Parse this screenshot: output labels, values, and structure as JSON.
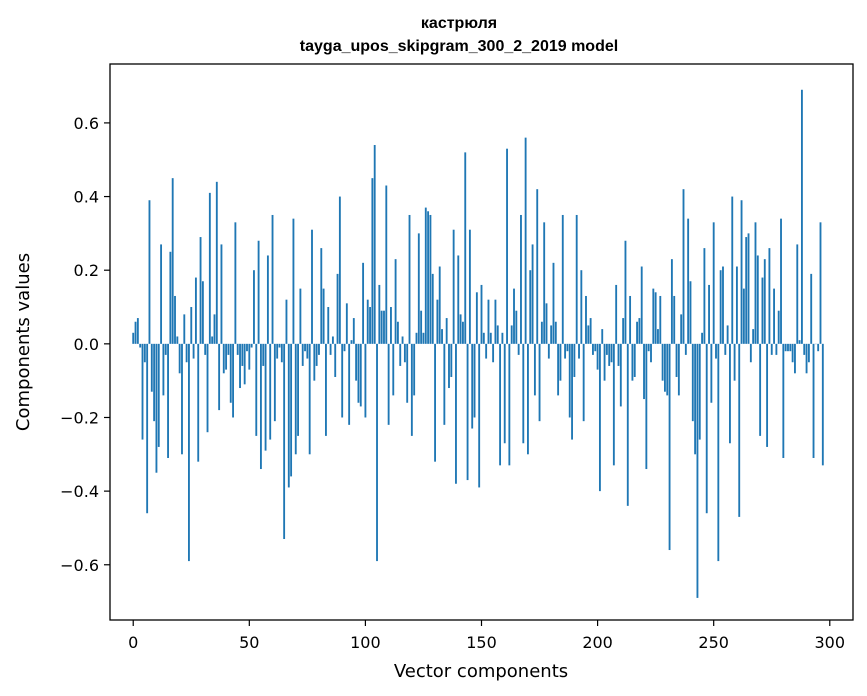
{
  "chart_data": {
    "type": "bar",
    "title": "кастрюля",
    "subtitle": "tayga_upos_skipgram_300_2_2019 model",
    "xlabel": "Vector components",
    "ylabel": "Components values",
    "xlim": [
      -10,
      310
    ],
    "ylim": [
      -0.75,
      0.76
    ],
    "xticks": [
      0,
      50,
      100,
      150,
      200,
      250,
      300
    ],
    "yticks": [
      -0.6,
      -0.4,
      -0.2,
      0.0,
      0.2,
      0.4,
      0.6
    ],
    "xtick_labels": [
      "0",
      "50",
      "100",
      "150",
      "200",
      "250",
      "300"
    ],
    "ytick_labels": [
      "−0.6",
      "−0.4",
      "−0.2",
      "0.0",
      "0.2",
      "0.4",
      "0.6"
    ],
    "grid": false,
    "color": "#1f77b4",
    "values": [
      0.03,
      0.06,
      0.07,
      -0.01,
      -0.26,
      -0.05,
      -0.46,
      0.39,
      -0.13,
      -0.21,
      -0.35,
      -0.28,
      0.27,
      -0.14,
      -0.03,
      -0.31,
      0.25,
      0.45,
      0.13,
      0.02,
      -0.08,
      -0.3,
      0.08,
      -0.05,
      -0.59,
      0.1,
      -0.04,
      0.18,
      -0.32,
      0.29,
      0.17,
      -0.03,
      -0.24,
      0.41,
      0.02,
      0.08,
      0.44,
      -0.18,
      0.27,
      -0.08,
      -0.07,
      -0.03,
      -0.16,
      -0.2,
      0.33,
      -0.03,
      -0.12,
      -0.06,
      -0.11,
      -0.02,
      -0.07,
      -0.01,
      0.2,
      -0.25,
      0.28,
      -0.34,
      -0.06,
      -0.29,
      0.24,
      -0.26,
      0.35,
      -0.21,
      -0.04,
      -0.01,
      -0.05,
      -0.53,
      0.12,
      -0.39,
      -0.36,
      0.34,
      -0.3,
      -0.25,
      0.15,
      -0.06,
      -0.02,
      -0.04,
      -0.3,
      0.31,
      -0.1,
      -0.06,
      -0.03,
      0.26,
      0.15,
      -0.25,
      0.1,
      -0.03,
      0.02,
      -0.09,
      0.19,
      0.4,
      -0.2,
      -0.02,
      0.11,
      -0.22,
      0.01,
      0.07,
      -0.1,
      -0.16,
      -0.17,
      0.22,
      -0.2,
      0.12,
      0.1,
      0.45,
      0.54,
      -0.59,
      0.16,
      0.09,
      0.09,
      0.43,
      -0.22,
      0.1,
      -0.14,
      0.23,
      0.06,
      -0.06,
      0.02,
      -0.05,
      -0.16,
      0.35,
      -0.25,
      -0.14,
      0.03,
      0.3,
      0.09,
      0.03,
      0.37,
      0.36,
      0.35,
      0.19,
      -0.32,
      0.12,
      0.21,
      0.04,
      -0.22,
      0.07,
      -0.12,
      -0.09,
      0.31,
      -0.38,
      0.24,
      0.08,
      0.06,
      0.52,
      -0.37,
      0.31,
      -0.23,
      -0.2,
      0.14,
      -0.39,
      0.16,
      0.03,
      -0.04,
      0.12,
      0.03,
      -0.05,
      0.12,
      0.05,
      -0.33,
      0.03,
      -0.27,
      0.53,
      -0.33,
      0.05,
      0.15,
      0.09,
      -0.03,
      0.35,
      -0.27,
      0.56,
      -0.3,
      0.2,
      0.27,
      -0.14,
      0.42,
      -0.21,
      0.06,
      0.33,
      0.11,
      -0.04,
      0.05,
      0.22,
      0.06,
      -0.14,
      -0.1,
      0.35,
      -0.04,
      -0.02,
      -0.2,
      -0.26,
      -0.09,
      0.35,
      -0.04,
      0.2,
      -0.21,
      0.13,
      0.05,
      0.07,
      -0.03,
      -0.02,
      -0.07,
      -0.4,
      0.04,
      -0.1,
      -0.03,
      -0.06,
      -0.05,
      -0.33,
      0.16,
      -0.06,
      -0.17,
      0.07,
      0.28,
      -0.44,
      0.13,
      -0.1,
      -0.09,
      0.06,
      0.07,
      0.21,
      -0.15,
      -0.34,
      -0.02,
      -0.05,
      0.15,
      0.14,
      0.04,
      0.13,
      -0.1,
      -0.13,
      -0.14,
      -0.56,
      0.23,
      0.13,
      -0.09,
      -0.14,
      0.08,
      0.42,
      -0.03,
      0.34,
      0.17,
      -0.21,
      -0.3,
      -0.69,
      -0.26,
      0.03,
      0.26,
      -0.46,
      0.16,
      -0.16,
      0.33,
      -0.04,
      -0.59,
      0.2,
      0.21,
      -0.03,
      0.05,
      -0.27,
      0.4,
      -0.1,
      0.21,
      -0.47,
      0.39,
      0.15,
      0.29,
      0.3,
      -0.05,
      0.04,
      0.33,
      0.24,
      -0.25,
      0.18,
      0.23,
      -0.28,
      0.26,
      -0.03,
      0.15,
      -0.03,
      0.09,
      0.34,
      -0.31,
      -0.02,
      -0.02,
      -0.02,
      -0.05,
      -0.08,
      0.27,
      0.01,
      0.69,
      -0.03,
      -0.08,
      -0.05,
      0.19,
      -0.31,
      0.0,
      -0.02,
      0.33,
      -0.33
    ]
  }
}
